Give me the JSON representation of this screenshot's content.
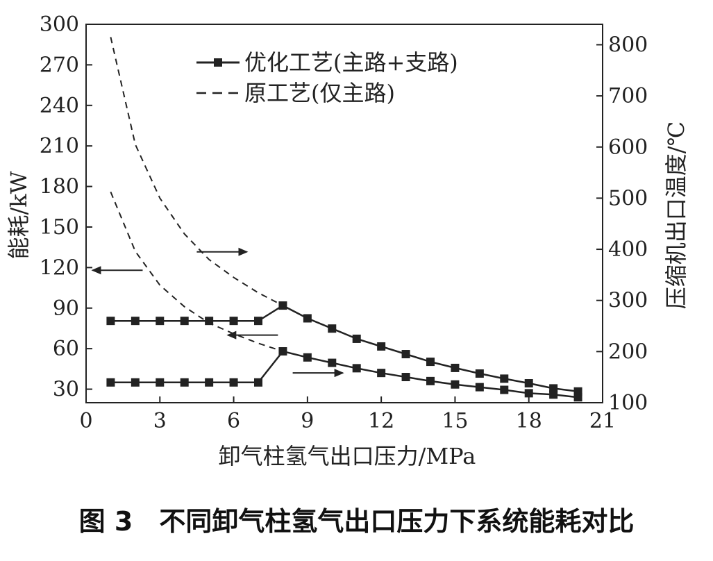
{
  "caption": "图 3　不同卸气柱氢气出口压力下系统能耗对比",
  "chart_data": {
    "type": "line",
    "title": "",
    "xlabel": "卸气柱氢气出口压力/MPa",
    "ylabel_left": "能耗/kW",
    "ylabel_right": "压缩机出口温度/℃",
    "xlim": [
      0,
      21
    ],
    "ylim_left": [
      20,
      300
    ],
    "ylim_right": [
      100,
      840
    ],
    "x_ticks": [
      0,
      3,
      6,
      9,
      12,
      15,
      18,
      21
    ],
    "y_left_ticks": [
      30,
      60,
      90,
      120,
      150,
      180,
      210,
      240,
      270,
      300
    ],
    "y_right_ticks": [
      100,
      200,
      300,
      400,
      500,
      600,
      700,
      800
    ],
    "grid": false,
    "legend_position": "top-center",
    "legend": [
      {
        "label": "优化工艺(主路+支路)",
        "style": "solid-square"
      },
      {
        "label": "原工艺(仅主路)",
        "style": "dashed"
      }
    ],
    "series": [
      {
        "label": "优化工艺(主路+支路)",
        "axis": "left",
        "style": "solid-square",
        "x": [
          1,
          2,
          3,
          4,
          5,
          6,
          7,
          8,
          9,
          10,
          11,
          12,
          13,
          14,
          15,
          16,
          17,
          18,
          19,
          20
        ],
        "y": [
          35,
          35,
          35,
          35,
          35,
          35,
          35,
          58,
          53.5,
          49.5,
          45.5,
          42,
          39,
          36,
          33.5,
          31.5,
          29.5,
          27,
          26,
          24
        ]
      },
      {
        "label": "优化工艺(主路+支路)",
        "axis": "right",
        "style": "solid-square",
        "x": [
          1,
          2,
          3,
          4,
          5,
          6,
          7,
          8,
          9,
          10,
          11,
          12,
          13,
          14,
          15,
          16,
          17,
          18,
          19,
          20
        ],
        "y": [
          260,
          260,
          260,
          260,
          260,
          260,
          260,
          290,
          265,
          245,
          225,
          210,
          195,
          180,
          168,
          157,
          147,
          138,
          128,
          122
        ]
      },
      {
        "label": "原工艺(仅主路)",
        "axis": "left",
        "style": "dashed",
        "x": [
          1,
          2,
          3,
          4,
          5,
          6,
          7,
          8
        ],
        "y": [
          176,
          132,
          107,
          91,
          79,
          71,
          64,
          58
        ]
      },
      {
        "label": "原工艺(仅主路)",
        "axis": "right",
        "style": "dashed",
        "x": [
          1,
          2,
          3,
          4,
          5,
          6,
          7,
          8
        ],
        "y": [
          815,
          605,
          500,
          430,
          380,
          345,
          315,
          290
        ]
      }
    ],
    "annotations": [
      {
        "type": "arrow",
        "direction": "right",
        "x": 4.5,
        "axis": "right",
        "y": 395
      },
      {
        "type": "arrow",
        "direction": "left",
        "x": 2.3,
        "axis": "left",
        "y": 118
      },
      {
        "type": "arrow",
        "direction": "left",
        "x": 7.8,
        "axis": "left",
        "y": 70
      },
      {
        "type": "arrow",
        "direction": "right",
        "x": 8.4,
        "axis": "left",
        "y": 42
      }
    ]
  }
}
